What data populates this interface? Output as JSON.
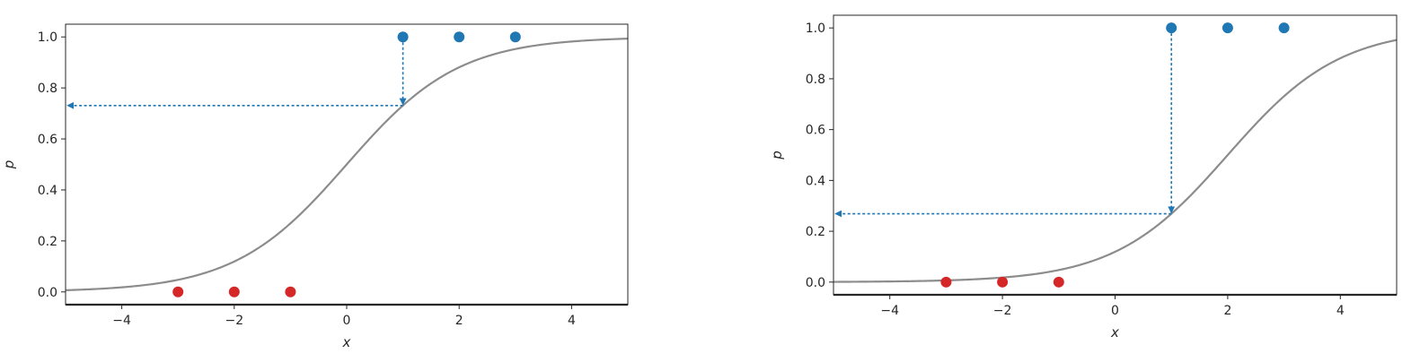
{
  "colors": {
    "curve": "#8c8c8c",
    "positive": "#1f77b4",
    "negative": "#d62728",
    "arrow": "#1f77b4",
    "axes": "#262626"
  },
  "chart_data": [
    {
      "type": "scatter",
      "xlabel": "x",
      "ylabel": "p",
      "xlim": [
        -5,
        5
      ],
      "ylim": [
        -0.05,
        1.05
      ],
      "xticks": [
        -4,
        -2,
        0,
        2,
        4
      ],
      "yticks": [
        0.0,
        0.2,
        0.4,
        0.6,
        0.8,
        1.0
      ],
      "xtick_labels": [
        "−4",
        "−2",
        "0",
        "2",
        "4"
      ],
      "ytick_labels": [
        "0.0",
        "0.2",
        "0.4",
        "0.6",
        "0.8",
        "1.0"
      ],
      "grid": false,
      "curve": {
        "type": "sigmoid",
        "slope": 1,
        "shift": 0
      },
      "series": [
        {
          "points": [
            [
              1,
              1
            ],
            [
              2,
              1
            ],
            [
              3,
              1
            ]
          ],
          "color": "#1f77b4"
        },
        {
          "points": [
            [
              -3,
              0
            ],
            [
              -2,
              0
            ],
            [
              -1,
              0
            ]
          ],
          "color": "#d62728"
        }
      ],
      "annotation": {
        "x": 1,
        "from_y": 1.0,
        "to_y": 0.731,
        "to_x": -5,
        "style": "dotted-arrow"
      }
    },
    {
      "type": "scatter",
      "xlabel": "x",
      "ylabel": "p",
      "xlim": [
        -5,
        5
      ],
      "ylim": [
        -0.05,
        1.05
      ],
      "xticks": [
        -4,
        -2,
        0,
        2,
        4
      ],
      "yticks": [
        0.0,
        0.2,
        0.4,
        0.6,
        0.8,
        1.0
      ],
      "xtick_labels": [
        "−4",
        "−2",
        "0",
        "2",
        "4"
      ],
      "ytick_labels": [
        "0.0",
        "0.2",
        "0.4",
        "0.6",
        "0.8",
        "1.0"
      ],
      "grid": false,
      "curve": {
        "type": "sigmoid",
        "slope": 1,
        "shift": 2
      },
      "series": [
        {
          "points": [
            [
              1,
              1
            ],
            [
              2,
              1
            ],
            [
              3,
              1
            ]
          ],
          "color": "#1f77b4"
        },
        {
          "points": [
            [
              -3,
              0
            ],
            [
              -2,
              0
            ],
            [
              -1,
              0
            ]
          ],
          "color": "#d62728"
        }
      ],
      "annotation": {
        "x": 1,
        "from_y": 1.0,
        "to_y": 0.269,
        "to_x": -5,
        "style": "dotted-arrow"
      }
    }
  ]
}
